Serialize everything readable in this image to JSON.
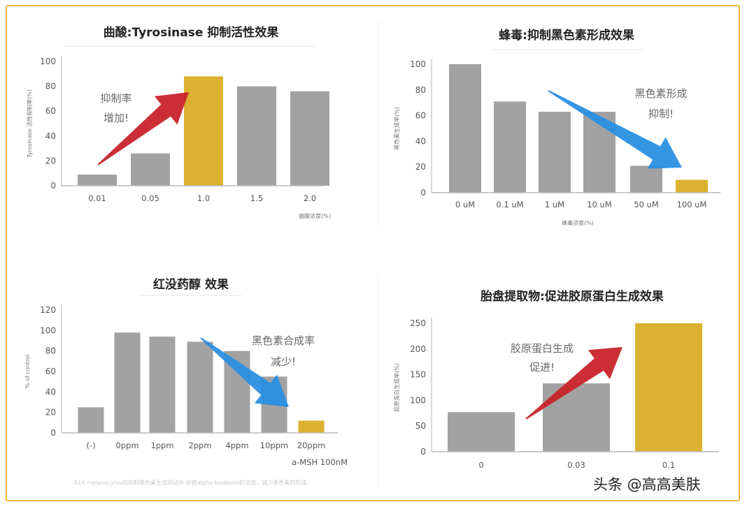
{
  "colors": {
    "bar": "#a2a2a2",
    "highlight": "#dcb12f",
    "up_arrow": "#c8242a",
    "down_arrow": "#2a8fe2",
    "frame": "#f0b73a"
  },
  "watermark": "头条 @高高美肤",
  "chart_data": [
    {
      "type": "bar",
      "title": "曲酸:Tyrosinase  抑制活性效果",
      "ylabel": "Tyrosinase 活性抑制率(%)",
      "xlabel": "曲酸浓度(%)",
      "categories": [
        "0.01",
        "0.05",
        "1.0",
        "1.5",
        "2.0"
      ],
      "values": [
        9,
        26,
        88,
        80,
        76
      ],
      "highlight_index": 2,
      "ylim": [
        0,
        100
      ],
      "yticks": [
        0,
        20,
        40,
        60,
        80,
        100
      ],
      "annotation": [
        "抑制率",
        "增加!"
      ],
      "arrow": "up-red",
      "grid": false
    },
    {
      "type": "bar",
      "title": "蜂毒:抑制黑色素形成效果",
      "ylabel": "黑色素生成率(%)",
      "xlabel": "蜂毒浓度(%)",
      "categories": [
        "0 uM",
        "0.1 uM",
        "1 uM",
        "10 uM",
        "50 uM",
        "100 uM"
      ],
      "values": [
        100,
        71,
        63,
        63,
        21,
        10
      ],
      "highlight_index": 5,
      "ylim": [
        0,
        100
      ],
      "yticks": [
        0,
        20,
        40,
        60,
        80,
        100
      ],
      "annotation": [
        "黑色素形成",
        "抑制!"
      ],
      "arrow": "down-blue",
      "grid": false
    },
    {
      "type": "bar",
      "title": "红没药醇  效果",
      "ylabel": "% of control",
      "xlabel": "a-MSH 100nM",
      "categories": [
        "(-)",
        "0ppm",
        "1ppm",
        "2ppm",
        "4ppm",
        "10ppm",
        "20ppm"
      ],
      "values": [
        25,
        98,
        94,
        89,
        80,
        55,
        12
      ],
      "highlight_index": 6,
      "ylim": [
        0,
        120
      ],
      "yticks": [
        0,
        20,
        40,
        60,
        80,
        100,
        120
      ],
      "annotation": [
        "黑色素合成率",
        "减少!"
      ],
      "arrow": "down-blue",
      "footnote": "B16 melanocytes的抑制黑色素生成测试中 依赖alpha-bisabolol的浓度，减少黑色素的形成",
      "grid": false
    },
    {
      "type": "bar",
      "title": "胎盘提取物:促进胶原蛋白生成效果",
      "ylabel": "胶原蛋白生成率(%)",
      "xlabel": "",
      "categories": [
        "0",
        "0.03",
        "0.1"
      ],
      "values": [
        77,
        133,
        250
      ],
      "highlight_index": 2,
      "ylim": [
        0,
        250
      ],
      "yticks": [
        0,
        50,
        100,
        150,
        200,
        250
      ],
      "annotation": [
        "胶原蛋白生成",
        "促进!"
      ],
      "arrow": "up-red",
      "grid": false
    }
  ]
}
